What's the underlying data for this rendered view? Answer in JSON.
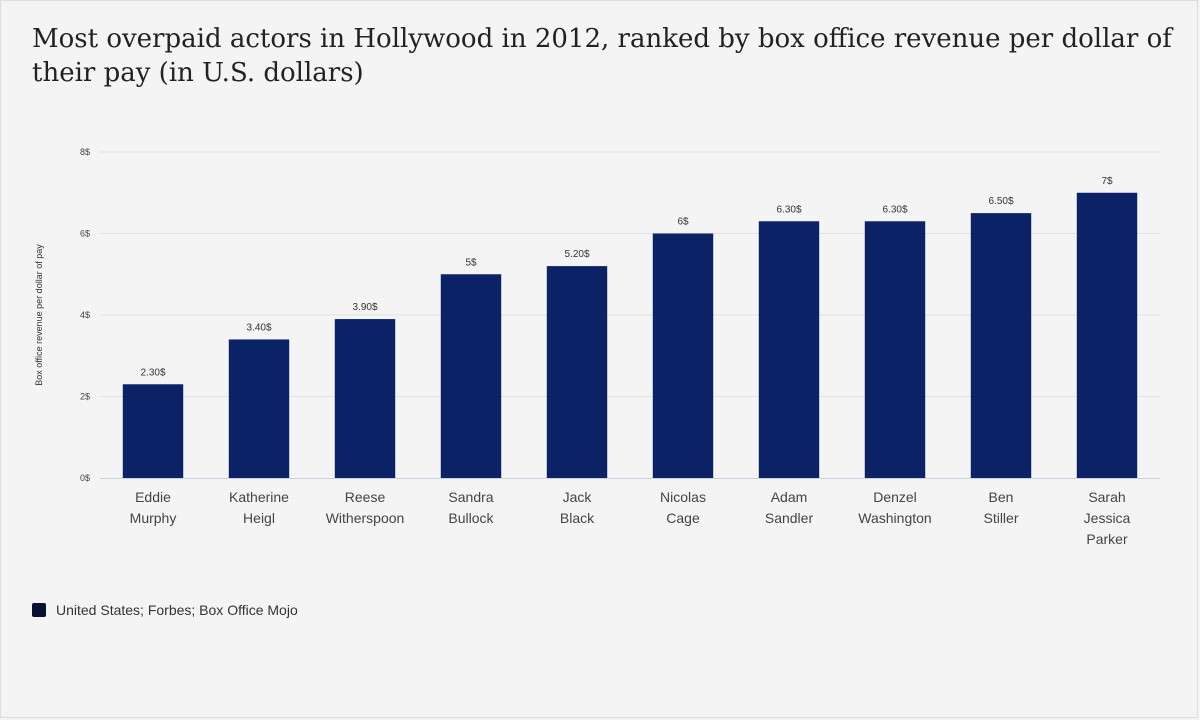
{
  "chart_data": {
    "type": "bar",
    "title": "Most overpaid actors in Hollywood in 2012, ranked by box office revenue per dollar of their pay (in U.S. dollars)",
    "ylabel": "Box office revenue per dollar of pay",
    "xlabel": "",
    "ylim": [
      0,
      8
    ],
    "yticks": [
      0,
      2,
      4,
      6,
      8
    ],
    "ytick_labels": [
      "0$",
      "2$",
      "4$",
      "6$",
      "8$"
    ],
    "grid": true,
    "categories": [
      [
        "Eddie",
        "Murphy"
      ],
      [
        "Katherine",
        "Heigl"
      ],
      [
        "Reese",
        "Witherspoon"
      ],
      [
        "Sandra",
        "Bullock"
      ],
      [
        "Jack",
        "Black"
      ],
      [
        "Nicolas",
        "Cage"
      ],
      [
        "Adam",
        "Sandler"
      ],
      [
        "Denzel",
        "Washington"
      ],
      [
        "Ben",
        "Stiller"
      ],
      [
        "Sarah",
        "Jessica",
        "Parker"
      ]
    ],
    "values": [
      2.3,
      3.4,
      3.9,
      5,
      5.2,
      6,
      6.3,
      6.3,
      6.5,
      7
    ],
    "value_labels": [
      "2.30$",
      "3.40$",
      "3.90$",
      "5$",
      "5.20$",
      "6$",
      "6.30$",
      "6.30$",
      "6.50$",
      "7$"
    ],
    "bar_color": "#0b2366",
    "legend": {
      "position": "bottom-left",
      "color": "#061133",
      "label": "United States; Forbes; Box Office Mojo"
    }
  }
}
